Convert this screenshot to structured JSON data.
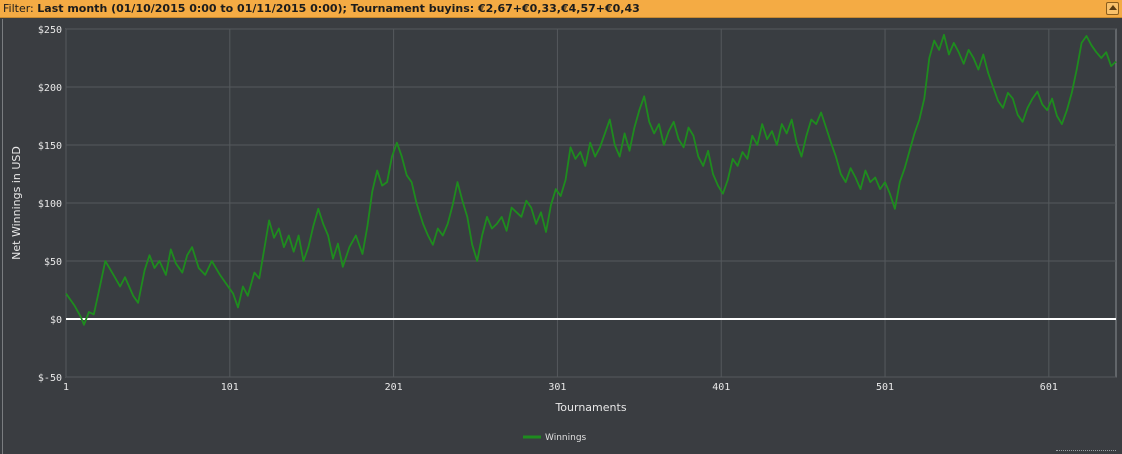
{
  "filter": {
    "label": "Filter:",
    "text": "Last month (01/10/2015 0:00 to 01/11/2015 0:00); Tournament buyins: €2,67+€0,33,€4,57+€0,43"
  },
  "colors": {
    "header_bg": "#f4ab44",
    "plot_bg": "#393d41",
    "line": "#1e8c1e",
    "grid": "#55595d",
    "zero_line": "#ffffff"
  },
  "chart_data": {
    "type": "line",
    "xlabel": "Tournaments",
    "ylabel": "Net Winnings in USD",
    "xlim": [
      1,
      642
    ],
    "ylim": [
      -50,
      250
    ],
    "x_ticks": [
      1,
      101,
      201,
      301,
      401,
      501,
      601
    ],
    "x_tick_labels": [
      "1",
      "101",
      "201",
      "301",
      "401",
      "501",
      "601"
    ],
    "y_ticks": [
      -50,
      0,
      50,
      100,
      150,
      200,
      250
    ],
    "y_tick_labels": [
      "$-50",
      "$0",
      "$50",
      "$100",
      "$150",
      "$200",
      "$250"
    ],
    "grid": true,
    "legend_position": "bottom-center",
    "series": [
      {
        "name": "Winnings",
        "color": "#1e8c1e",
        "points": [
          [
            1,
            22
          ],
          [
            6,
            12
          ],
          [
            10,
            2
          ],
          [
            12,
            -5
          ],
          [
            15,
            6
          ],
          [
            18,
            4
          ],
          [
            22,
            30
          ],
          [
            25,
            50
          ],
          [
            30,
            38
          ],
          [
            34,
            28
          ],
          [
            37,
            36
          ],
          [
            42,
            20
          ],
          [
            45,
            14
          ],
          [
            49,
            42
          ],
          [
            52,
            55
          ],
          [
            55,
            44
          ],
          [
            58,
            50
          ],
          [
            62,
            38
          ],
          [
            65,
            60
          ],
          [
            68,
            48
          ],
          [
            72,
            40
          ],
          [
            75,
            55
          ],
          [
            78,
            62
          ],
          [
            82,
            44
          ],
          [
            86,
            38
          ],
          [
            90,
            50
          ],
          [
            95,
            38
          ],
          [
            99,
            30
          ],
          [
            103,
            22
          ],
          [
            106,
            10
          ],
          [
            109,
            28
          ],
          [
            112,
            20
          ],
          [
            116,
            40
          ],
          [
            119,
            35
          ],
          [
            122,
            60
          ],
          [
            125,
            85
          ],
          [
            128,
            70
          ],
          [
            131,
            78
          ],
          [
            134,
            62
          ],
          [
            137,
            72
          ],
          [
            140,
            58
          ],
          [
            143,
            72
          ],
          [
            146,
            50
          ],
          [
            149,
            62
          ],
          [
            152,
            80
          ],
          [
            155,
            95
          ],
          [
            158,
            82
          ],
          [
            161,
            72
          ],
          [
            164,
            52
          ],
          [
            167,
            65
          ],
          [
            170,
            45
          ],
          [
            174,
            62
          ],
          [
            178,
            72
          ],
          [
            182,
            56
          ],
          [
            185,
            80
          ],
          [
            188,
            110
          ],
          [
            191,
            128
          ],
          [
            194,
            115
          ],
          [
            197,
            118
          ],
          [
            200,
            140
          ],
          [
            203,
            152
          ],
          [
            206,
            140
          ],
          [
            209,
            124
          ],
          [
            212,
            118
          ],
          [
            215,
            100
          ],
          [
            219,
            82
          ],
          [
            222,
            72
          ],
          [
            225,
            64
          ],
          [
            228,
            78
          ],
          [
            231,
            72
          ],
          [
            234,
            82
          ],
          [
            237,
            98
          ],
          [
            240,
            118
          ],
          [
            243,
            102
          ],
          [
            246,
            88
          ],
          [
            249,
            64
          ],
          [
            252,
            50
          ],
          [
            255,
            72
          ],
          [
            258,
            88
          ],
          [
            261,
            78
          ],
          [
            264,
            82
          ],
          [
            267,
            88
          ],
          [
            270,
            76
          ],
          [
            273,
            96
          ],
          [
            276,
            92
          ],
          [
            279,
            88
          ],
          [
            282,
            102
          ],
          [
            285,
            96
          ],
          [
            288,
            82
          ],
          [
            291,
            92
          ],
          [
            294,
            75
          ],
          [
            297,
            98
          ],
          [
            300,
            112
          ],
          [
            303,
            106
          ],
          [
            306,
            120
          ],
          [
            309,
            148
          ],
          [
            312,
            138
          ],
          [
            315,
            144
          ],
          [
            318,
            132
          ],
          [
            321,
            152
          ],
          [
            324,
            140
          ],
          [
            327,
            148
          ],
          [
            330,
            160
          ],
          [
            333,
            172
          ],
          [
            336,
            150
          ],
          [
            339,
            140
          ],
          [
            342,
            160
          ],
          [
            345,
            145
          ],
          [
            348,
            165
          ],
          [
            351,
            180
          ],
          [
            354,
            192
          ],
          [
            357,
            170
          ],
          [
            360,
            160
          ],
          [
            363,
            168
          ],
          [
            366,
            150
          ],
          [
            369,
            162
          ],
          [
            372,
            170
          ],
          [
            375,
            155
          ],
          [
            378,
            148
          ],
          [
            381,
            165
          ],
          [
            384,
            158
          ],
          [
            387,
            140
          ],
          [
            390,
            132
          ],
          [
            393,
            145
          ],
          [
            396,
            125
          ],
          [
            399,
            115
          ],
          [
            402,
            108
          ],
          [
            405,
            120
          ],
          [
            408,
            138
          ],
          [
            411,
            132
          ],
          [
            414,
            144
          ],
          [
            417,
            138
          ],
          [
            420,
            158
          ],
          [
            423,
            150
          ],
          [
            426,
            168
          ],
          [
            429,
            155
          ],
          [
            432,
            162
          ],
          [
            435,
            150
          ],
          [
            438,
            168
          ],
          [
            441,
            160
          ],
          [
            444,
            172
          ],
          [
            447,
            152
          ],
          [
            450,
            140
          ],
          [
            453,
            158
          ],
          [
            456,
            172
          ],
          [
            459,
            168
          ],
          [
            462,
            178
          ],
          [
            465,
            165
          ],
          [
            468,
            152
          ],
          [
            471,
            140
          ],
          [
            474,
            125
          ],
          [
            477,
            118
          ],
          [
            480,
            130
          ],
          [
            483,
            122
          ],
          [
            486,
            112
          ],
          [
            489,
            128
          ],
          [
            492,
            118
          ],
          [
            495,
            122
          ],
          [
            498,
            112
          ],
          [
            501,
            118
          ],
          [
            504,
            108
          ],
          [
            507,
            95
          ],
          [
            510,
            118
          ],
          [
            513,
            130
          ],
          [
            516,
            145
          ],
          [
            519,
            160
          ],
          [
            522,
            172
          ],
          [
            525,
            190
          ],
          [
            528,
            225
          ],
          [
            531,
            240
          ],
          [
            534,
            232
          ],
          [
            537,
            245
          ],
          [
            540,
            228
          ],
          [
            543,
            238
          ],
          [
            546,
            230
          ],
          [
            549,
            220
          ],
          [
            552,
            232
          ],
          [
            555,
            225
          ],
          [
            558,
            215
          ],
          [
            561,
            228
          ],
          [
            564,
            212
          ],
          [
            567,
            200
          ],
          [
            570,
            188
          ],
          [
            573,
            182
          ],
          [
            576,
            195
          ],
          [
            579,
            190
          ],
          [
            582,
            176
          ],
          [
            585,
            170
          ],
          [
            588,
            182
          ],
          [
            591,
            190
          ],
          [
            594,
            196
          ],
          [
            597,
            185
          ],
          [
            600,
            180
          ],
          [
            603,
            190
          ],
          [
            606,
            175
          ],
          [
            609,
            168
          ],
          [
            612,
            180
          ],
          [
            615,
            195
          ],
          [
            618,
            215
          ],
          [
            621,
            238
          ],
          [
            624,
            244
          ],
          [
            627,
            236
          ],
          [
            630,
            230
          ],
          [
            633,
            225
          ],
          [
            636,
            230
          ],
          [
            639,
            218
          ],
          [
            642,
            222
          ]
        ]
      }
    ]
  }
}
